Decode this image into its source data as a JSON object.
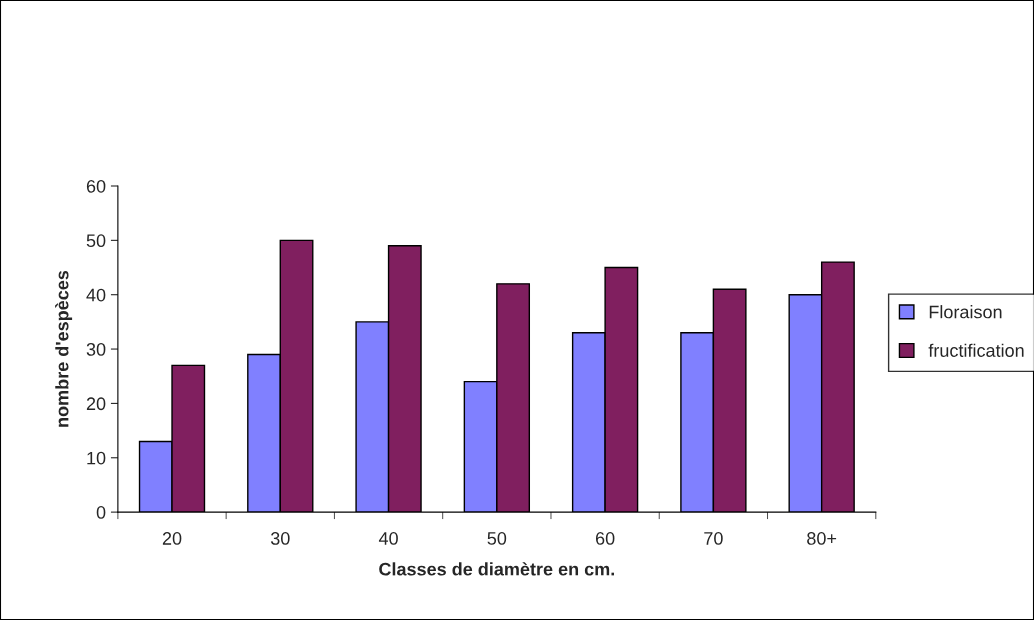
{
  "chart_data": {
    "type": "bar",
    "xlabel": "Classes de diamètre en cm.",
    "ylabel": "nombre d'espèces",
    "categories": [
      "20",
      "30",
      "40",
      "50",
      "60",
      "70",
      "80+"
    ],
    "series": [
      {
        "name": "Floraison",
        "color": "#8080ff",
        "values": [
          13,
          29,
          35,
          24,
          33,
          33,
          40
        ]
      },
      {
        "name": "fructification",
        "color": "#801f5f",
        "values": [
          27,
          50,
          49,
          42,
          45,
          41,
          46
        ]
      }
    ],
    "ylim": [
      0,
      60
    ],
    "yticks": [
      0,
      10,
      20,
      30,
      40,
      50,
      60
    ],
    "grid": false,
    "legend": "right"
  }
}
